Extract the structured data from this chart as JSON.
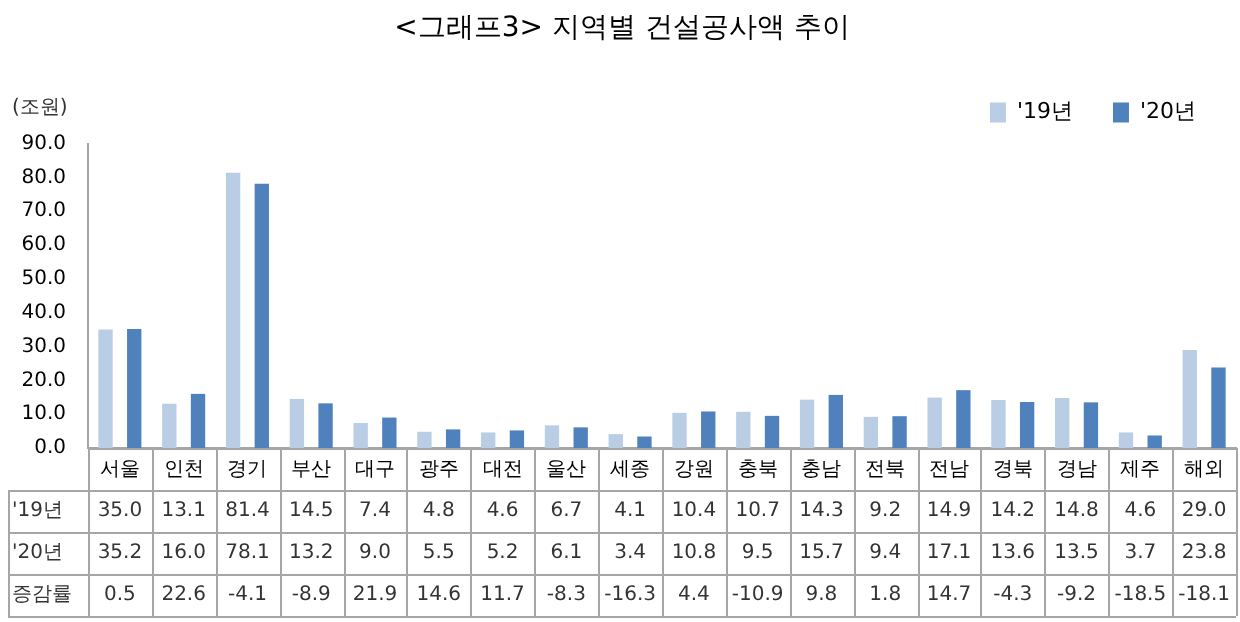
{
  "chart_data": {
    "type": "bar",
    "title": "<그래프3> 지역별 건설공사액 추이",
    "ylabel": "(조원)",
    "categories": [
      "서울",
      "인천",
      "경기",
      "부산",
      "대구",
      "광주",
      "대전",
      "울산",
      "세종",
      "강원",
      "충북",
      "충남",
      "전북",
      "전남",
      "경북",
      "경남",
      "제주",
      "해외"
    ],
    "series": [
      {
        "name": "'19년",
        "color": "#b9cde5",
        "values": [
          35.0,
          13.1,
          81.4,
          14.5,
          7.4,
          4.8,
          4.6,
          6.7,
          4.1,
          10.4,
          10.7,
          14.3,
          9.2,
          14.9,
          14.2,
          14.8,
          4.6,
          29.0
        ],
        "value_labels": [
          "35.0",
          "13.1",
          "81.4",
          "14.5",
          "7.4",
          "4.8",
          "4.6",
          "6.7",
          "4.1",
          "10.4",
          "10.7",
          "14.3",
          "9.2",
          "14.9",
          "14.2",
          "14.8",
          "4.6",
          "29.0"
        ]
      },
      {
        "name": "'20년",
        "color": "#4f81bd",
        "values": [
          35.2,
          16.0,
          78.1,
          13.2,
          9.0,
          5.5,
          5.2,
          6.1,
          3.4,
          10.8,
          9.5,
          15.7,
          9.4,
          17.1,
          13.6,
          13.5,
          3.7,
          23.8
        ],
        "value_labels": [
          "35.2",
          "16.0",
          "78.1",
          "13.2",
          "9.0",
          "5.5",
          "5.2",
          "6.1",
          "3.4",
          "10.8",
          "9.5",
          "15.7",
          "9.4",
          "17.1",
          "13.6",
          "13.5",
          "3.7",
          "23.8"
        ]
      },
      {
        "name": "증감률",
        "type": "other",
        "values": [
          null,
          null,
          null,
          null,
          null,
          null,
          null,
          null,
          null,
          null,
          null,
          null,
          null,
          null,
          null,
          null,
          null,
          null
        ],
        "value_labels": [
          "0.5",
          "22.6",
          "-4.1",
          "-8.9",
          "21.9",
          "14.6",
          "11.7",
          "-8.3",
          "-16.3",
          "4.4",
          "-10.9",
          "9.8",
          "1.8",
          "14.7",
          "-4.3",
          "-9.2",
          "-18.5",
          "-18.1"
        ]
      }
    ],
    "ylim": [
      0,
      90
    ],
    "yticks": [
      {
        "value": 0,
        "label": "0.0"
      },
      {
        "value": 10,
        "label": "10.0"
      },
      {
        "value": 20,
        "label": "20.0"
      },
      {
        "value": 30,
        "label": "30.0"
      },
      {
        "value": 40,
        "label": "40.0"
      },
      {
        "value": 50,
        "label": "50.0"
      },
      {
        "value": 60,
        "label": "60.0"
      },
      {
        "value": 70,
        "label": "70.0"
      },
      {
        "value": 80,
        "label": "80.0"
      },
      {
        "value": 90,
        "label": "90.0"
      }
    ],
    "grid": false,
    "legend": "top right"
  }
}
